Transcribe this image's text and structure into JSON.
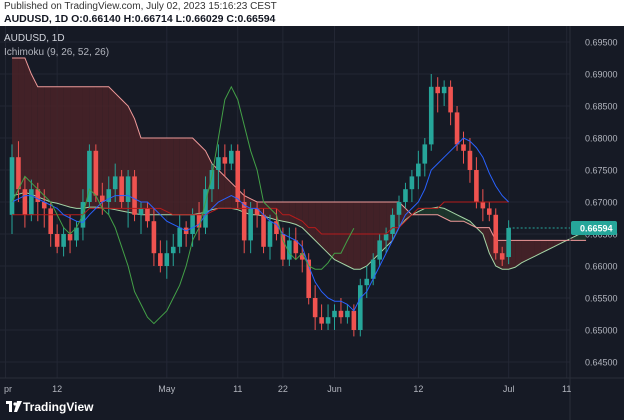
{
  "header": {
    "published": "Published on TradingView.com, July 02, 2023 15:16:23 CEST",
    "symbol_line": "AUDUSD, 1D O:0.66140 H:0.66714 L:0.66029 C:0.66594"
  },
  "legend": {
    "symbol": "AUDUSD, 1D",
    "indicator": "Ichimoku (9, 26, 52, 26)"
  },
  "brand": {
    "name": "TradingView"
  },
  "colors": {
    "background": "#161a25",
    "up": "#26a69a",
    "down": "#ef5350",
    "tenkan": "#2962ff",
    "kijun": "#b71c1c",
    "chikou": "#43a047",
    "span_a": "#a5d6a7",
    "span_b": "#ef9a9a",
    "cloud": "#4a2328",
    "price_tag": "#26a69a"
  },
  "chart_data": {
    "type": "candlestick",
    "symbol": "AUDUSD",
    "interval": "1D",
    "indicator": "Ichimoku (9, 26, 52, 26)",
    "ylim": [
      0.6425,
      0.6975
    ],
    "yticks": [
      0.645,
      0.65,
      0.655,
      0.66,
      0.665,
      0.67,
      0.675,
      0.68,
      0.685,
      0.69,
      0.695
    ],
    "ytick_labels": [
      "0.64500",
      "0.65000",
      "0.65500",
      "0.66000",
      "0.66500",
      "0.67000",
      "0.67500",
      "0.68000",
      "0.68500",
      "0.69000",
      "0.69500"
    ],
    "xticks": [
      "pr",
      "12",
      "May",
      "11",
      "22",
      "Jun",
      "12",
      "Jul",
      "11"
    ],
    "last_price": "0.66594",
    "ohlc": [
      [
        0.668,
        0.679,
        0.665,
        0.677
      ],
      [
        0.677,
        0.6795,
        0.67,
        0.672
      ],
      [
        0.672,
        0.674,
        0.666,
        0.668
      ],
      [
        0.668,
        0.6735,
        0.667,
        0.672
      ],
      [
        0.672,
        0.673,
        0.667,
        0.67
      ],
      [
        0.67,
        0.672,
        0.666,
        0.669
      ],
      [
        0.669,
        0.67,
        0.663,
        0.665
      ],
      [
        0.665,
        0.6665,
        0.662,
        0.663
      ],
      [
        0.663,
        0.666,
        0.6615,
        0.665
      ],
      [
        0.665,
        0.668,
        0.662,
        0.664
      ],
      [
        0.664,
        0.667,
        0.663,
        0.666
      ],
      [
        0.666,
        0.672,
        0.664,
        0.67
      ],
      [
        0.67,
        0.679,
        0.669,
        0.678
      ],
      [
        0.678,
        0.679,
        0.67,
        0.671
      ],
      [
        0.671,
        0.673,
        0.668,
        0.67
      ],
      [
        0.67,
        0.674,
        0.668,
        0.672
      ],
      [
        0.672,
        0.676,
        0.67,
        0.674
      ],
      [
        0.674,
        0.675,
        0.669,
        0.67
      ],
      [
        0.67,
        0.675,
        0.666,
        0.674
      ],
      [
        0.674,
        0.675,
        0.667,
        0.668
      ],
      [
        0.668,
        0.67,
        0.665,
        0.669
      ],
      [
        0.669,
        0.67,
        0.666,
        0.667
      ],
      [
        0.667,
        0.669,
        0.66,
        0.662
      ],
      [
        0.662,
        0.664,
        0.659,
        0.66
      ],
      [
        0.66,
        0.664,
        0.658,
        0.662
      ],
      [
        0.662,
        0.665,
        0.66,
        0.663
      ],
      [
        0.663,
        0.668,
        0.662,
        0.666
      ],
      [
        0.666,
        0.667,
        0.663,
        0.665
      ],
      [
        0.665,
        0.669,
        0.663,
        0.668
      ],
      [
        0.668,
        0.67,
        0.664,
        0.666
      ],
      [
        0.666,
        0.674,
        0.665,
        0.672
      ],
      [
        0.672,
        0.676,
        0.67,
        0.675
      ],
      [
        0.675,
        0.679,
        0.672,
        0.677
      ],
      [
        0.677,
        0.679,
        0.674,
        0.676
      ],
      [
        0.676,
        0.679,
        0.675,
        0.678
      ],
      [
        0.678,
        0.679,
        0.669,
        0.67
      ],
      [
        0.67,
        0.672,
        0.662,
        0.664
      ],
      [
        0.664,
        0.67,
        0.662,
        0.669
      ],
      [
        0.669,
        0.67,
        0.666,
        0.668
      ],
      [
        0.668,
        0.669,
        0.662,
        0.663
      ],
      [
        0.663,
        0.668,
        0.661,
        0.667
      ],
      [
        0.667,
        0.669,
        0.664,
        0.665
      ],
      [
        0.665,
        0.666,
        0.66,
        0.661
      ],
      [
        0.661,
        0.666,
        0.66,
        0.664
      ],
      [
        0.664,
        0.666,
        0.661,
        0.662
      ],
      [
        0.662,
        0.664,
        0.659,
        0.661
      ],
      [
        0.661,
        0.662,
        0.654,
        0.655
      ],
      [
        0.655,
        0.657,
        0.65,
        0.652
      ],
      [
        0.652,
        0.654,
        0.65,
        0.651
      ],
      [
        0.651,
        0.654,
        0.65,
        0.652
      ],
      [
        0.652,
        0.654,
        0.65,
        0.653
      ],
      [
        0.653,
        0.655,
        0.651,
        0.652
      ],
      [
        0.652,
        0.654,
        0.651,
        0.653
      ],
      [
        0.653,
        0.654,
        0.649,
        0.65
      ],
      [
        0.65,
        0.658,
        0.649,
        0.657
      ],
      [
        0.657,
        0.66,
        0.655,
        0.658
      ],
      [
        0.658,
        0.662,
        0.657,
        0.661
      ],
      [
        0.661,
        0.665,
        0.66,
        0.664
      ],
      [
        0.664,
        0.666,
        0.662,
        0.665
      ],
      [
        0.665,
        0.669,
        0.664,
        0.668
      ],
      [
        0.668,
        0.671,
        0.666,
        0.67
      ],
      [
        0.67,
        0.673,
        0.669,
        0.672
      ],
      [
        0.672,
        0.675,
        0.67,
        0.674
      ],
      [
        0.674,
        0.678,
        0.672,
        0.676
      ],
      [
        0.676,
        0.68,
        0.674,
        0.679
      ],
      [
        0.679,
        0.69,
        0.678,
        0.688
      ],
      [
        0.688,
        0.6895,
        0.684,
        0.687
      ],
      [
        0.687,
        0.689,
        0.685,
        0.688
      ],
      [
        0.688,
        0.689,
        0.682,
        0.684
      ],
      [
        0.684,
        0.685,
        0.678,
        0.679
      ],
      [
        0.679,
        0.681,
        0.676,
        0.678
      ],
      [
        0.678,
        0.68,
        0.673,
        0.675
      ],
      [
        0.675,
        0.677,
        0.669,
        0.67
      ],
      [
        0.67,
        0.672,
        0.667,
        0.669
      ],
      [
        0.669,
        0.67,
        0.667,
        0.668
      ],
      [
        0.668,
        0.669,
        0.661,
        0.662
      ],
      [
        0.662,
        0.663,
        0.66,
        0.661
      ],
      [
        0.6614,
        0.66714,
        0.66029,
        0.66594
      ]
    ],
    "tenkan": [
      0.67,
      0.6705,
      0.671,
      0.671,
      0.6705,
      0.67,
      0.6695,
      0.669,
      0.668,
      0.6675,
      0.667,
      0.6668,
      0.668,
      0.669,
      0.67,
      0.6705,
      0.671,
      0.671,
      0.671,
      0.6705,
      0.67,
      0.67,
      0.669,
      0.668,
      0.667,
      0.6665,
      0.666,
      0.6655,
      0.666,
      0.6665,
      0.668,
      0.669,
      0.67,
      0.6705,
      0.671,
      0.6705,
      0.6695,
      0.669,
      0.669,
      0.668,
      0.667,
      0.6665,
      0.665,
      0.6645,
      0.664,
      0.663,
      0.66,
      0.6575,
      0.656,
      0.655,
      0.6545,
      0.6545,
      0.654,
      0.653,
      0.655,
      0.656,
      0.658,
      0.66,
      0.662,
      0.664,
      0.666,
      0.668,
      0.669,
      0.67,
      0.672,
      0.675,
      0.676,
      0.677,
      0.678,
      0.679,
      0.68,
      0.6795,
      0.6785,
      0.677,
      0.6745,
      0.6725,
      0.671,
      0.67
    ],
    "kijun": [
      0.668,
      0.668,
      0.668,
      0.668,
      0.668,
      0.668,
      0.668,
      0.668,
      0.668,
      0.668,
      0.668,
      0.668,
      0.669,
      0.669,
      0.669,
      0.669,
      0.669,
      0.669,
      0.669,
      0.669,
      0.669,
      0.669,
      0.669,
      0.669,
      0.6685,
      0.668,
      0.668,
      0.668,
      0.668,
      0.668,
      0.668,
      0.6685,
      0.669,
      0.669,
      0.669,
      0.669,
      0.669,
      0.669,
      0.669,
      0.669,
      0.669,
      0.669,
      0.668,
      0.668,
      0.6675,
      0.667,
      0.666,
      0.666,
      0.665,
      0.665,
      0.665,
      0.665,
      0.665,
      0.665,
      0.665,
      0.665,
      0.665,
      0.665,
      0.665,
      0.666,
      0.666,
      0.667,
      0.668,
      0.669,
      0.669,
      0.669,
      0.669,
      0.67,
      0.67,
      0.67,
      0.67,
      0.67,
      0.67,
      0.67,
      0.67,
      0.67,
      0.67,
      0.67
    ],
    "chikou": {
      "start_index": 0,
      "values": [
        0.67,
        0.672,
        0.674,
        0.673,
        0.672,
        0.671,
        0.67,
        0.668,
        0.666,
        0.665,
        0.666,
        0.668,
        0.672,
        0.671,
        0.669,
        0.668,
        0.666,
        0.663,
        0.66,
        0.656,
        0.654,
        0.652,
        0.651,
        0.652,
        0.653,
        0.655,
        0.657,
        0.66,
        0.664,
        0.666,
        0.67,
        0.674,
        0.68,
        0.686,
        0.688,
        0.686,
        0.682,
        0.678,
        0.675,
        0.67,
        0.669,
        0.668,
        0.664,
        0.662,
        0.661,
        0.662,
        0.66,
        0.6595,
        0.6595,
        0.6605,
        0.662,
        0.662,
        0.664,
        0.6659
      ]
    },
    "span_a": {
      "start_index": 0,
      "values": [
        0.671,
        0.6712,
        0.6715,
        0.6712,
        0.6708,
        0.6704,
        0.67,
        0.6698,
        0.6695,
        0.6692,
        0.669,
        0.669,
        0.6692,
        0.6692,
        0.669,
        0.669,
        0.6688,
        0.6686,
        0.6684,
        0.6682,
        0.668,
        0.668,
        0.668,
        0.668,
        0.668,
        0.668,
        0.668,
        0.668,
        0.668,
        0.6682,
        0.6684,
        0.6688,
        0.669,
        0.669,
        0.669,
        0.6688,
        0.6684,
        0.668,
        0.668,
        0.6678,
        0.6675,
        0.6672,
        0.667,
        0.6668,
        0.6665,
        0.666,
        0.665,
        0.664,
        0.663,
        0.662,
        0.661,
        0.6605,
        0.66,
        0.6595,
        0.6595,
        0.66,
        0.661,
        0.662,
        0.663,
        0.664,
        0.666,
        0.6672,
        0.668,
        0.6685,
        0.669,
        0.669,
        0.6692,
        0.669,
        0.6685,
        0.668,
        0.6675,
        0.667,
        0.666,
        0.665,
        0.662,
        0.66,
        0.6595,
        0.6595,
        0.6598,
        0.6605,
        0.661,
        0.6615,
        0.662,
        0.6625,
        0.663,
        0.6635,
        0.664,
        0.6645,
        0.665,
        0.6655
      ]
    },
    "span_b": {
      "start_index": 0,
      "values": [
        0.6925,
        0.6925,
        0.6925,
        0.69,
        0.688,
        0.688,
        0.688,
        0.688,
        0.688,
        0.688,
        0.688,
        0.688,
        0.688,
        0.688,
        0.688,
        0.688,
        0.687,
        0.686,
        0.685,
        0.683,
        0.68,
        0.68,
        0.68,
        0.68,
        0.68,
        0.68,
        0.68,
        0.68,
        0.68,
        0.679,
        0.678,
        0.676,
        0.675,
        0.674,
        0.673,
        0.672,
        0.671,
        0.6705,
        0.67,
        0.67,
        0.67,
        0.67,
        0.67,
        0.67,
        0.67,
        0.67,
        0.67,
        0.67,
        0.67,
        0.67,
        0.67,
        0.67,
        0.67,
        0.67,
        0.67,
        0.67,
        0.67,
        0.67,
        0.67,
        0.67,
        0.67,
        0.669,
        0.668,
        0.668,
        0.668,
        0.668,
        0.668,
        0.6675,
        0.667,
        0.667,
        0.667,
        0.6665,
        0.666,
        0.666,
        0.666,
        0.664,
        0.664,
        0.664,
        0.664,
        0.664,
        0.664,
        0.664,
        0.664,
        0.664,
        0.664,
        0.664,
        0.664,
        0.664,
        0.664,
        0.664
      ]
    }
  }
}
